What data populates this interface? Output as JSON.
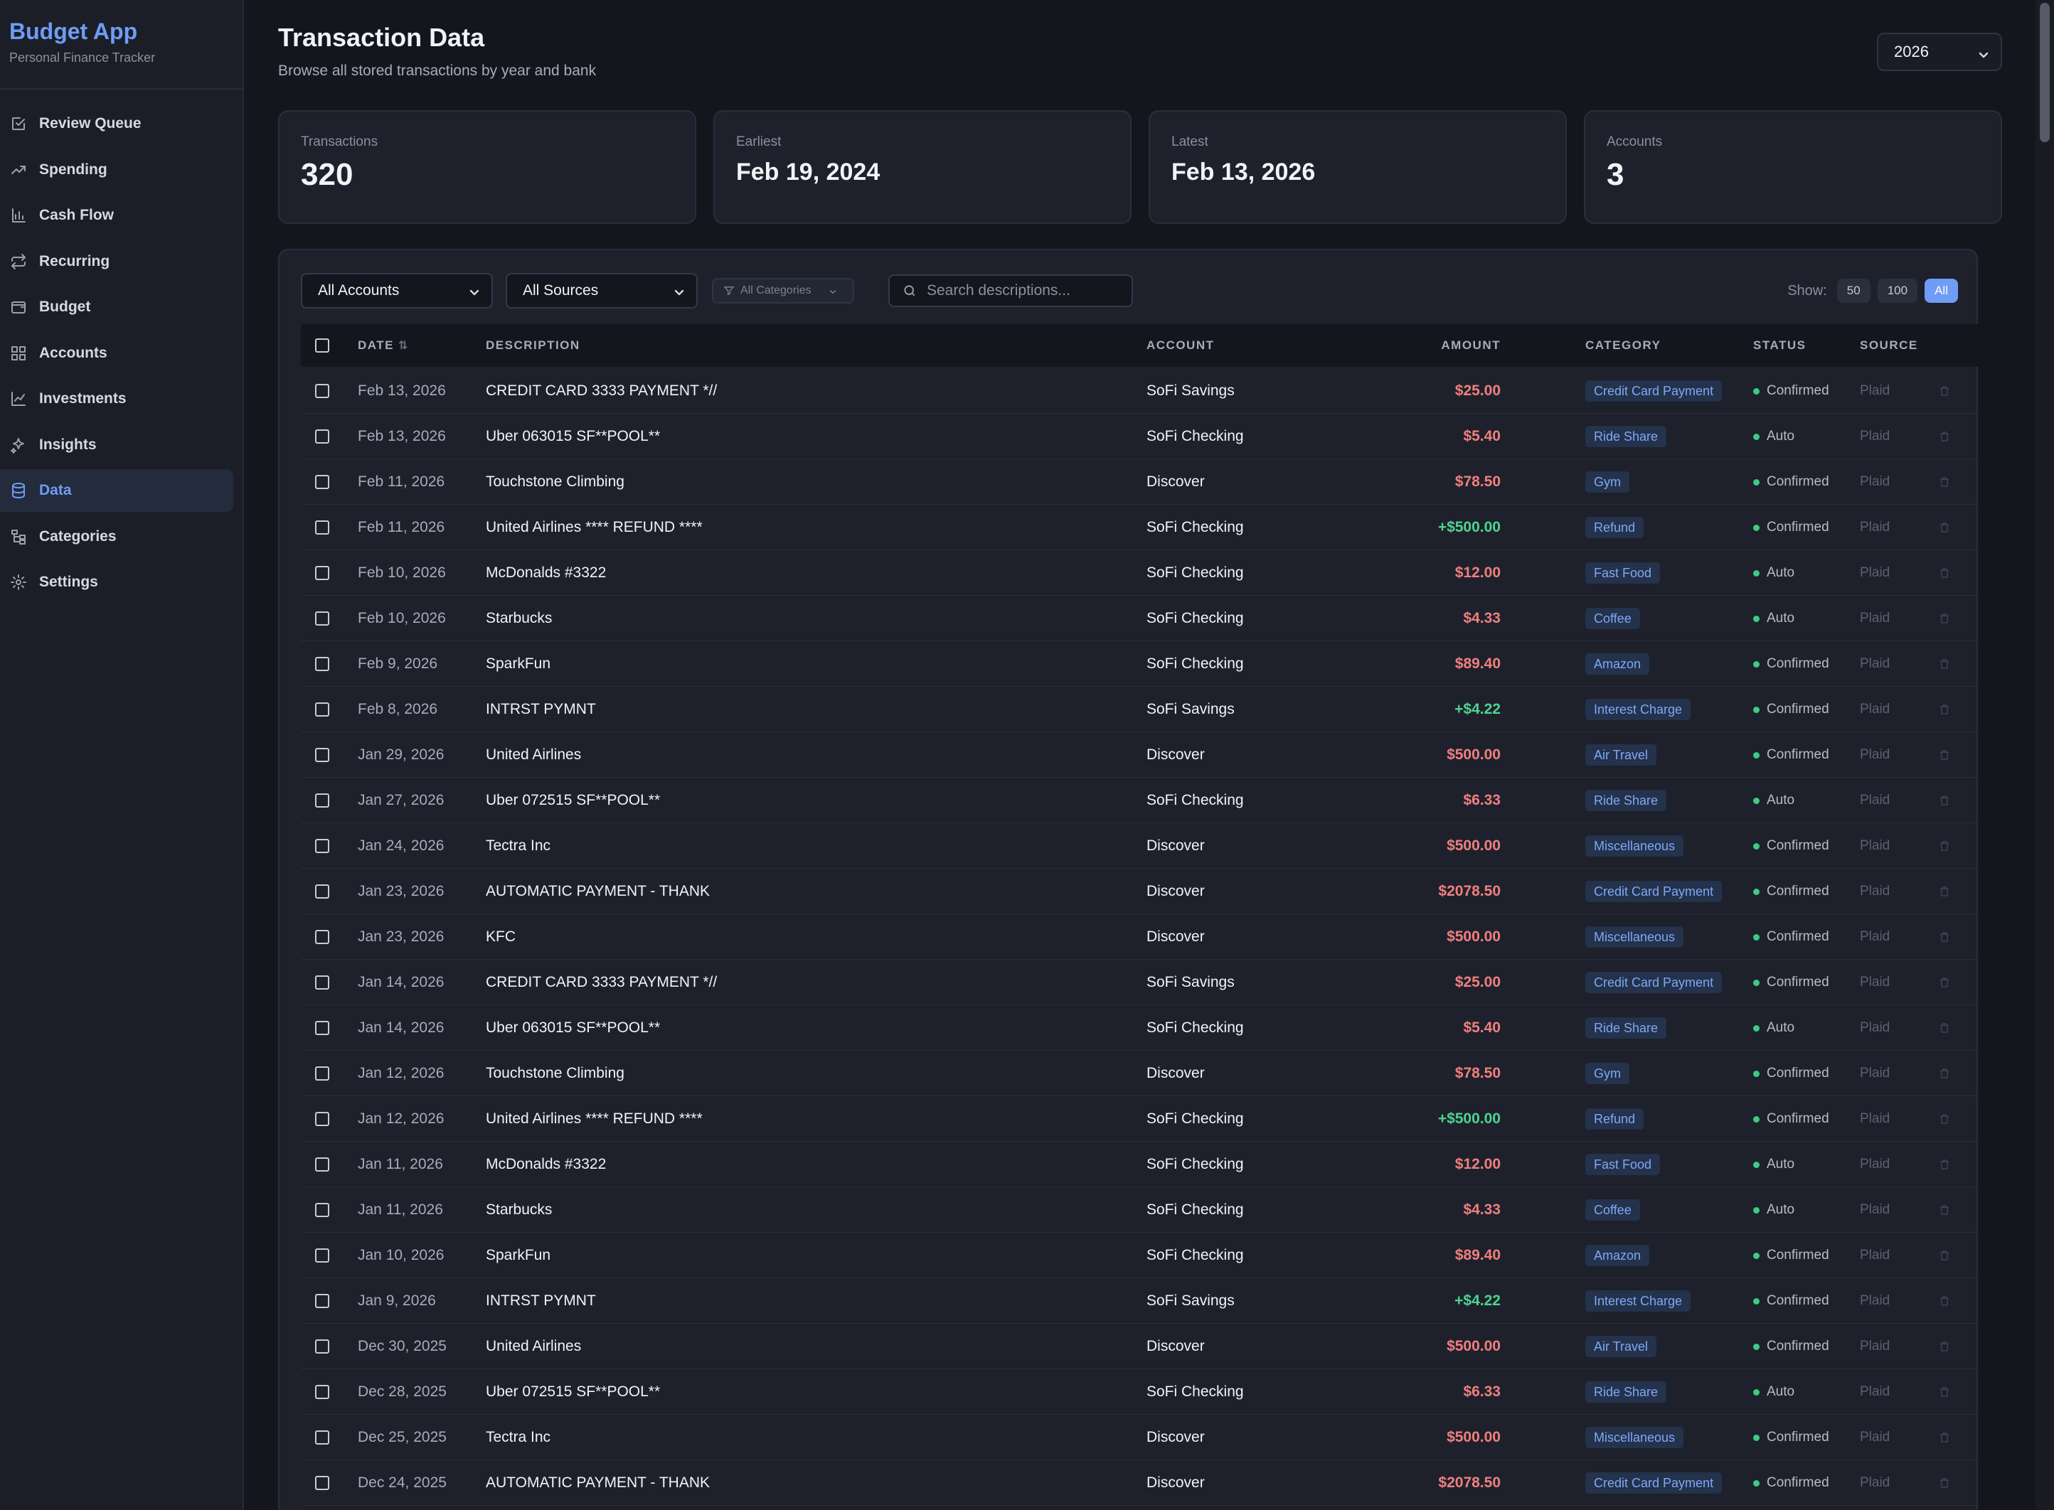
{
  "app": {
    "title": "Budget App",
    "subtitle": "Personal Finance Tracker"
  },
  "sidebar": {
    "items": [
      {
        "label": "Review Queue",
        "icon": "checkbox-edit-icon"
      },
      {
        "label": "Spending",
        "icon": "trending-up-icon"
      },
      {
        "label": "Cash Flow",
        "icon": "bar-chart-icon"
      },
      {
        "label": "Recurring",
        "icon": "repeat-icon"
      },
      {
        "label": "Budget",
        "icon": "wallet-icon"
      },
      {
        "label": "Accounts",
        "icon": "grid-icon"
      },
      {
        "label": "Investments",
        "icon": "line-chart-icon"
      },
      {
        "label": "Insights",
        "icon": "sparkles-icon"
      },
      {
        "label": "Data",
        "icon": "database-icon",
        "active": true
      },
      {
        "label": "Categories",
        "icon": "tree-icon"
      },
      {
        "label": "Settings",
        "icon": "gear-icon"
      }
    ]
  },
  "header": {
    "title": "Transaction Data",
    "subtitle": "Browse all stored transactions by year and bank",
    "year": "2026"
  },
  "stats": [
    {
      "label": "Transactions",
      "value": "320"
    },
    {
      "label": "Earliest",
      "value": "Feb 19, 2024"
    },
    {
      "label": "Latest",
      "value": "Feb 13, 2026"
    },
    {
      "label": "Accounts",
      "value": "3"
    }
  ],
  "filters": {
    "accounts": "All Accounts",
    "sources": "All Sources",
    "categories": "All Categories",
    "search_placeholder": "Search descriptions...",
    "show_label": "Show:",
    "page_sizes": [
      "50",
      "100",
      "All"
    ],
    "active_page_size": "All"
  },
  "table": {
    "columns": {
      "date": "DATE",
      "description": "DESCRIPTION",
      "account": "ACCOUNT",
      "amount": "AMOUNT",
      "category": "CATEGORY",
      "status": "STATUS",
      "source": "SOURCE"
    },
    "rows": [
      {
        "date": "Feb 13, 2026",
        "description": "CREDIT CARD 3333 PAYMENT *//",
        "account": "SoFi Savings",
        "amount": "$25.00",
        "sign": "neg",
        "category": "Credit Card Payment",
        "status": "Confirmed",
        "source": "Plaid"
      },
      {
        "date": "Feb 13, 2026",
        "description": "Uber 063015 SF**POOL**",
        "account": "SoFi Checking",
        "amount": "$5.40",
        "sign": "neg",
        "category": "Ride Share",
        "status": "Auto",
        "source": "Plaid"
      },
      {
        "date": "Feb 11, 2026",
        "description": "Touchstone Climbing",
        "account": "Discover",
        "amount": "$78.50",
        "sign": "neg",
        "category": "Gym",
        "status": "Confirmed",
        "source": "Plaid"
      },
      {
        "date": "Feb 11, 2026",
        "description": "United Airlines **** REFUND ****",
        "account": "SoFi Checking",
        "amount": "+$500.00",
        "sign": "pos",
        "category": "Refund",
        "status": "Confirmed",
        "source": "Plaid"
      },
      {
        "date": "Feb 10, 2026",
        "description": "McDonalds #3322",
        "account": "SoFi Checking",
        "amount": "$12.00",
        "sign": "neg",
        "category": "Fast Food",
        "status": "Auto",
        "source": "Plaid"
      },
      {
        "date": "Feb 10, 2026",
        "description": "Starbucks",
        "account": "SoFi Checking",
        "amount": "$4.33",
        "sign": "neg",
        "category": "Coffee",
        "status": "Auto",
        "source": "Plaid"
      },
      {
        "date": "Feb 9, 2026",
        "description": "SparkFun",
        "account": "SoFi Checking",
        "amount": "$89.40",
        "sign": "neg",
        "category": "Amazon",
        "status": "Confirmed",
        "source": "Plaid"
      },
      {
        "date": "Feb 8, 2026",
        "description": "INTRST PYMNT",
        "account": "SoFi Savings",
        "amount": "+$4.22",
        "sign": "pos",
        "category": "Interest Charge",
        "status": "Confirmed",
        "source": "Plaid"
      },
      {
        "date": "Jan 29, 2026",
        "description": "United Airlines",
        "account": "Discover",
        "amount": "$500.00",
        "sign": "neg",
        "category": "Air Travel",
        "status": "Confirmed",
        "source": "Plaid"
      },
      {
        "date": "Jan 27, 2026",
        "description": "Uber 072515 SF**POOL**",
        "account": "SoFi Checking",
        "amount": "$6.33",
        "sign": "neg",
        "category": "Ride Share",
        "status": "Auto",
        "source": "Plaid"
      },
      {
        "date": "Jan 24, 2026",
        "description": "Tectra Inc",
        "account": "Discover",
        "amount": "$500.00",
        "sign": "neg",
        "category": "Miscellaneous",
        "status": "Confirmed",
        "source": "Plaid"
      },
      {
        "date": "Jan 23, 2026",
        "description": "AUTOMATIC PAYMENT - THANK",
        "account": "Discover",
        "amount": "$2078.50",
        "sign": "neg",
        "category": "Credit Card Payment",
        "status": "Confirmed",
        "source": "Plaid"
      },
      {
        "date": "Jan 23, 2026",
        "description": "KFC",
        "account": "Discover",
        "amount": "$500.00",
        "sign": "neg",
        "category": "Miscellaneous",
        "status": "Confirmed",
        "source": "Plaid"
      },
      {
        "date": "Jan 14, 2026",
        "description": "CREDIT CARD 3333 PAYMENT *//",
        "account": "SoFi Savings",
        "amount": "$25.00",
        "sign": "neg",
        "category": "Credit Card Payment",
        "status": "Confirmed",
        "source": "Plaid"
      },
      {
        "date": "Jan 14, 2026",
        "description": "Uber 063015 SF**POOL**",
        "account": "SoFi Checking",
        "amount": "$5.40",
        "sign": "neg",
        "category": "Ride Share",
        "status": "Auto",
        "source": "Plaid"
      },
      {
        "date": "Jan 12, 2026",
        "description": "Touchstone Climbing",
        "account": "Discover",
        "amount": "$78.50",
        "sign": "neg",
        "category": "Gym",
        "status": "Confirmed",
        "source": "Plaid"
      },
      {
        "date": "Jan 12, 2026",
        "description": "United Airlines **** REFUND ****",
        "account": "SoFi Checking",
        "amount": "+$500.00",
        "sign": "pos",
        "category": "Refund",
        "status": "Confirmed",
        "source": "Plaid"
      },
      {
        "date": "Jan 11, 2026",
        "description": "McDonalds #3322",
        "account": "SoFi Checking",
        "amount": "$12.00",
        "sign": "neg",
        "category": "Fast Food",
        "status": "Auto",
        "source": "Plaid"
      },
      {
        "date": "Jan 11, 2026",
        "description": "Starbucks",
        "account": "SoFi Checking",
        "amount": "$4.33",
        "sign": "neg",
        "category": "Coffee",
        "status": "Auto",
        "source": "Plaid"
      },
      {
        "date": "Jan 10, 2026",
        "description": "SparkFun",
        "account": "SoFi Checking",
        "amount": "$89.40",
        "sign": "neg",
        "category": "Amazon",
        "status": "Confirmed",
        "source": "Plaid"
      },
      {
        "date": "Jan 9, 2026",
        "description": "INTRST PYMNT",
        "account": "SoFi Savings",
        "amount": "+$4.22",
        "sign": "pos",
        "category": "Interest Charge",
        "status": "Confirmed",
        "source": "Plaid"
      },
      {
        "date": "Dec 30, 2025",
        "description": "United Airlines",
        "account": "Discover",
        "amount": "$500.00",
        "sign": "neg",
        "category": "Air Travel",
        "status": "Confirmed",
        "source": "Plaid"
      },
      {
        "date": "Dec 28, 2025",
        "description": "Uber 072515 SF**POOL**",
        "account": "SoFi Checking",
        "amount": "$6.33",
        "sign": "neg",
        "category": "Ride Share",
        "status": "Auto",
        "source": "Plaid"
      },
      {
        "date": "Dec 25, 2025",
        "description": "Tectra Inc",
        "account": "Discover",
        "amount": "$500.00",
        "sign": "neg",
        "category": "Miscellaneous",
        "status": "Confirmed",
        "source": "Plaid"
      },
      {
        "date": "Dec 24, 2025",
        "description": "AUTOMATIC PAYMENT - THANK",
        "account": "Discover",
        "amount": "$2078.50",
        "sign": "neg",
        "category": "Credit Card Payment",
        "status": "Confirmed",
        "source": "Plaid"
      }
    ]
  },
  "colors": {
    "accent": "#6f9cf5",
    "negative_amount": "#f07f7f",
    "positive_amount": "#4ed38f",
    "status_dot": "#3dcc82"
  }
}
